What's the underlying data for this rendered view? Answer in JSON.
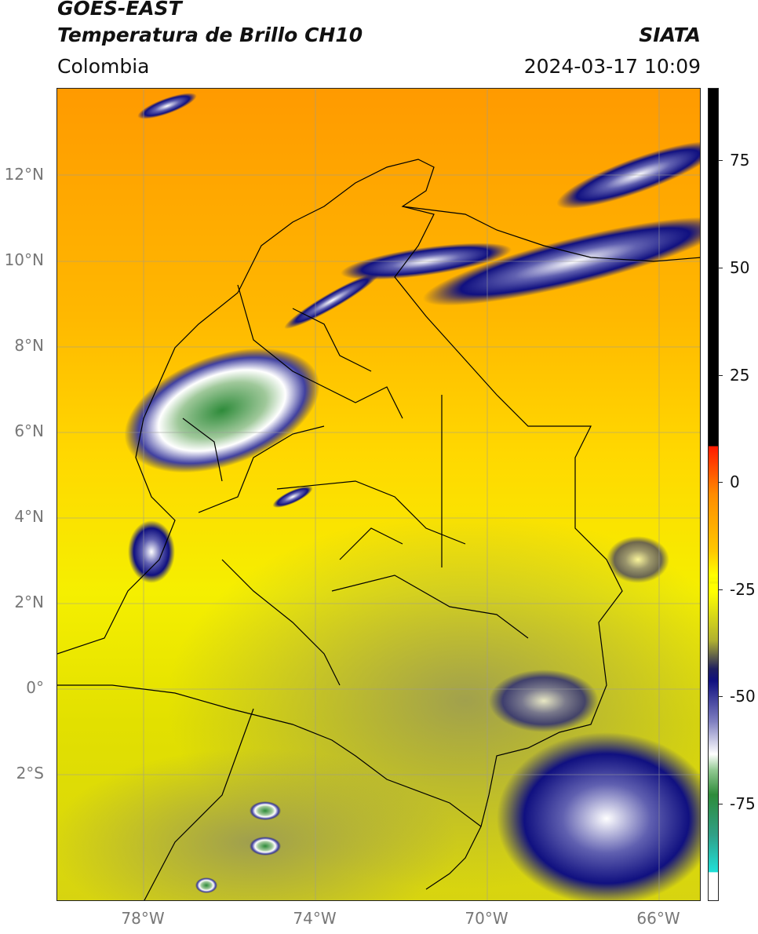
{
  "header": {
    "satellite": "GOES-EAST",
    "product": "Temperatura de Brillo CH10",
    "region": "Colombia",
    "brand": "SIATA",
    "timestamp": "2024-03-17 10:09"
  },
  "map": {
    "lat_labels": [
      "12°N",
      "10°N",
      "8°N",
      "6°N",
      "4°N",
      "2°N",
      "0°",
      "2°S"
    ],
    "lon_labels": [
      "78°W",
      "74°W",
      "70°W",
      "66°W"
    ]
  },
  "colorbar": {
    "labels": [
      "75",
      "50",
      "25",
      "0",
      "-25",
      "-50",
      "-75"
    ],
    "colors": {
      "black": "#000000",
      "red": "#ff1a00",
      "orange": "#ff8c00",
      "yellow": "#ffff00",
      "olive": "#a8a840",
      "navy": "#101080",
      "white": "#ffffff",
      "green": "#2e8b3a",
      "cyan": "#20e0d8"
    }
  }
}
